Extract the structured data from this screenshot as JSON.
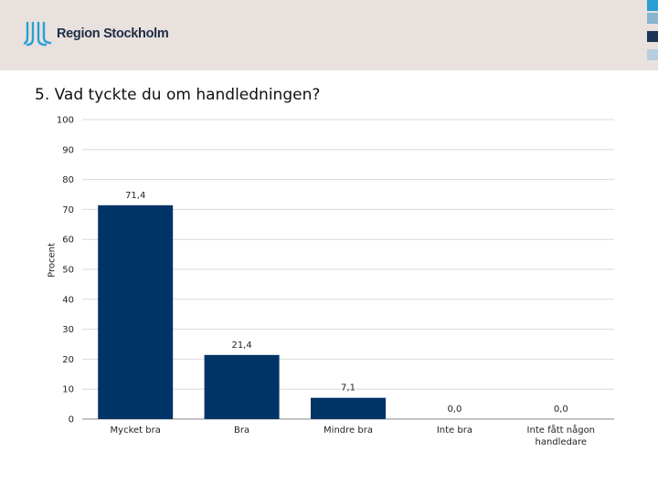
{
  "header": {
    "brand": "Region Stockholm",
    "swatch_colors": [
      "#2a9fd6",
      "#8ab4cf",
      "#1d3557",
      "#b7cde0"
    ]
  },
  "colors": {
    "bar": "#003366",
    "grid": "#d9d9d9",
    "axis": "#888888"
  },
  "chart_data": {
    "type": "bar",
    "title": "5. Vad tyckte du om handledningen?",
    "xlabel": "",
    "ylabel": "Procent",
    "ylim": [
      0,
      100
    ],
    "yticks": [
      0,
      10,
      20,
      30,
      40,
      50,
      60,
      70,
      80,
      90,
      100
    ],
    "grid": true,
    "categories": [
      "Mycket bra",
      "Bra",
      "Mindre bra",
      "Inte bra",
      "Inte fått någon handledare"
    ],
    "values": [
      71.4,
      21.4,
      7.1,
      0.0,
      0.0
    ],
    "data_labels": [
      "71,4",
      "21,4",
      "7,1",
      "0,0",
      "0,0"
    ]
  }
}
